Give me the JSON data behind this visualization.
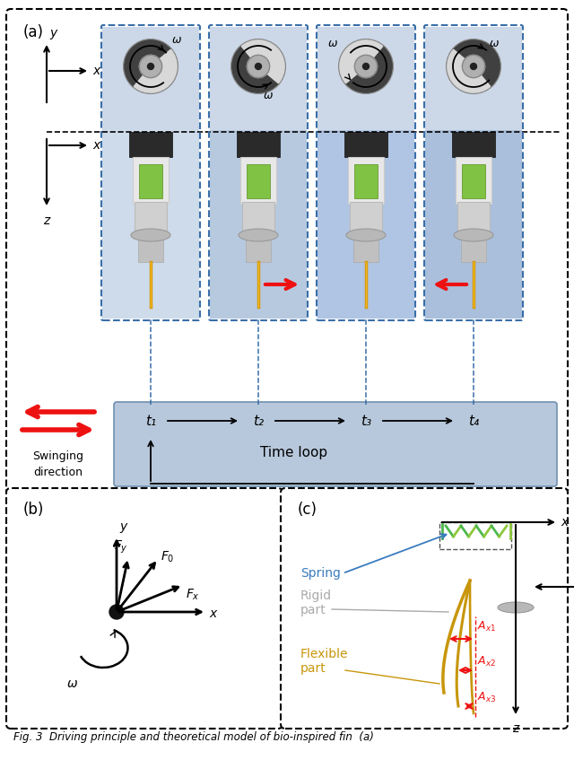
{
  "fig_width": 6.4,
  "fig_height": 8.47,
  "bg_color": "#ffffff",
  "panel_a_label": "(a)",
  "panel_b_label": "(b)",
  "panel_c_label": "(c)",
  "caption": "Fig. 3  Driving principle and theoretical model of bio-inspired fin  (a)",
  "time_labels": [
    "t₁",
    "t₂",
    "t₃",
    "t₄"
  ],
  "time_loop_text": "Time loop",
  "swinging_text": "Swinging\ndirection",
  "spring_text": "Spring",
  "rigid_text": "Rigid\npart",
  "flexible_text": "Flexible\npart",
  "blue_light": "#b8ccdf",
  "blue_panel": "#b8c8dc",
  "dashed_blue": "#3a6fa8",
  "motor_green": "#7fc244",
  "spring_green_1": "#4db84d",
  "spring_green_2": "#8dc83c",
  "flexible_gold": "#c8960a",
  "red_arrow": "#ee1111",
  "label_blue": "#3a7bbf",
  "label_gray": "#999999",
  "col_bg_colors": [
    "#c8d8e8",
    "#b0c4dc",
    "#a8bee0",
    "#a0b8d8"
  ]
}
